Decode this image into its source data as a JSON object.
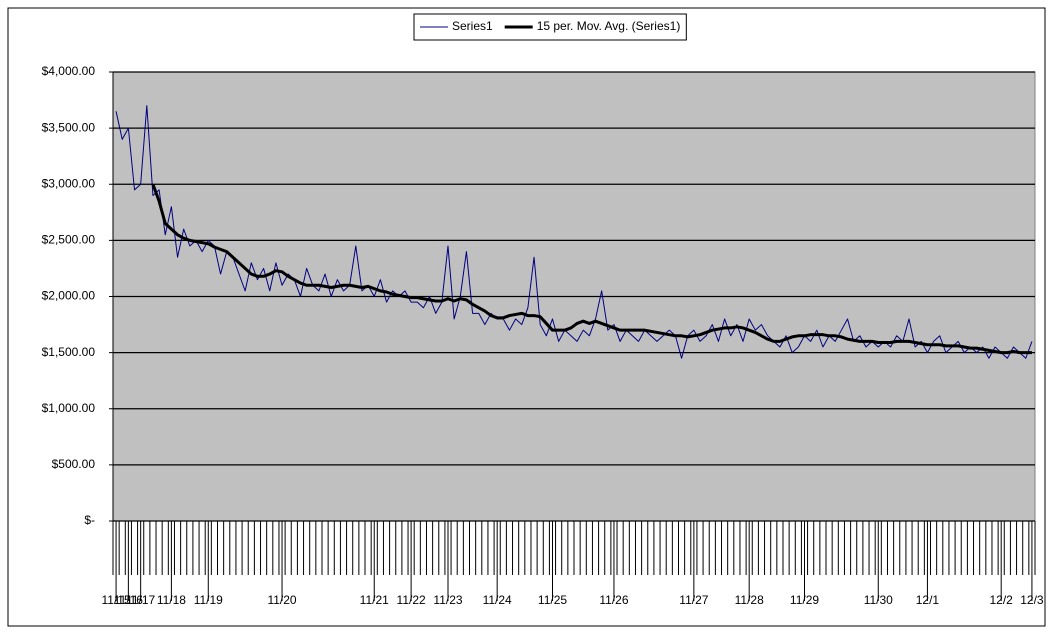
{
  "chart_data": {
    "type": "line",
    "categories": [
      "11/15",
      null,
      "11/16",
      null,
      "11/17",
      null,
      null,
      null,
      null,
      "11/18",
      null,
      null,
      null,
      null,
      null,
      "11/19",
      null,
      null,
      null,
      null,
      null,
      null,
      null,
      null,
      null,
      null,
      null,
      "11/20",
      null,
      null,
      null,
      null,
      null,
      null,
      null,
      null,
      null,
      null,
      null,
      null,
      null,
      null,
      "11/21",
      null,
      null,
      null,
      null,
      null,
      "11/22",
      null,
      null,
      null,
      null,
      null,
      "11/23",
      null,
      null,
      null,
      null,
      null,
      null,
      null,
      "11/24",
      null,
      null,
      null,
      null,
      null,
      null,
      null,
      null,
      "11/25",
      null,
      null,
      null,
      null,
      null,
      null,
      null,
      null,
      null,
      "11/26",
      null,
      null,
      null,
      null,
      null,
      null,
      null,
      null,
      null,
      null,
      null,
      null,
      "11/27",
      null,
      null,
      null,
      null,
      null,
      null,
      null,
      null,
      "11/28",
      null,
      null,
      null,
      null,
      null,
      null,
      null,
      null,
      "11/29",
      null,
      null,
      null,
      null,
      null,
      null,
      null,
      null,
      null,
      null,
      null,
      "11/30",
      null,
      null,
      null,
      null,
      null,
      null,
      null,
      "12/1",
      null,
      null,
      null,
      null,
      null,
      null,
      null,
      null,
      null,
      null,
      null,
      "12/2",
      null,
      null,
      null,
      null,
      "12/3"
    ],
    "series": [
      {
        "name": "Series1",
        "color": "#000080",
        "values": [
          3650,
          3400,
          3500,
          2950,
          3000,
          3700,
          2900,
          2950,
          2550,
          2800,
          2350,
          2600,
          2450,
          2500,
          2400,
          2500,
          2450,
          2200,
          2400,
          2350,
          2200,
          2050,
          2300,
          2150,
          2250,
          2050,
          2300,
          2100,
          2200,
          2150,
          2000,
          2250,
          2100,
          2050,
          2200,
          2000,
          2150,
          2050,
          2100,
          2450,
          2050,
          2100,
          2000,
          2150,
          1950,
          2050,
          2000,
          2050,
          1950,
          1950,
          1900,
          2000,
          1850,
          1950,
          2450,
          1800,
          2000,
          2400,
          1850,
          1850,
          1750,
          1850,
          1800,
          1800,
          1700,
          1800,
          1750,
          1900,
          2350,
          1750,
          1650,
          1800,
          1600,
          1700,
          1650,
          1600,
          1700,
          1650,
          1800,
          2050,
          1700,
          1750,
          1600,
          1700,
          1650,
          1600,
          1700,
          1650,
          1600,
          1650,
          1700,
          1650,
          1450,
          1650,
          1700,
          1600,
          1650,
          1750,
          1600,
          1800,
          1650,
          1750,
          1600,
          1800,
          1700,
          1750,
          1650,
          1600,
          1550,
          1650,
          1500,
          1550,
          1650,
          1600,
          1700,
          1550,
          1650,
          1600,
          1700,
          1800,
          1600,
          1650,
          1550,
          1600,
          1550,
          1600,
          1550,
          1650,
          1600,
          1800,
          1550,
          1600,
          1500,
          1600,
          1650,
          1500,
          1550,
          1600,
          1500,
          1550,
          1500,
          1550,
          1450,
          1550,
          1500,
          1450,
          1550,
          1500,
          1450,
          1600
        ]
      },
      {
        "name": "15 per. Mov. Avg. (Series1)",
        "color": "#000000",
        "values": [
          null,
          null,
          null,
          null,
          null,
          null,
          3000,
          2850,
          2650,
          2600,
          2550,
          2520,
          2500,
          2490,
          2480,
          2470,
          2440,
          2420,
          2400,
          2350,
          2300,
          2250,
          2200,
          2180,
          2180,
          2200,
          2230,
          2220,
          2180,
          2150,
          2120,
          2100,
          2100,
          2100,
          2090,
          2080,
          2090,
          2100,
          2100,
          2090,
          2080,
          2090,
          2070,
          2050,
          2040,
          2020,
          2010,
          2000,
          1990,
          1990,
          1980,
          1970,
          1960,
          1960,
          1980,
          1960,
          1980,
          1970,
          1930,
          1900,
          1870,
          1830,
          1810,
          1810,
          1830,
          1840,
          1850,
          1830,
          1830,
          1820,
          1760,
          1700,
          1700,
          1700,
          1720,
          1760,
          1780,
          1760,
          1780,
          1760,
          1740,
          1720,
          1700,
          1700,
          1700,
          1700,
          1700,
          1690,
          1680,
          1670,
          1660,
          1650,
          1650,
          1640,
          1650,
          1660,
          1680,
          1700,
          1710,
          1720,
          1720,
          1730,
          1720,
          1700,
          1680,
          1650,
          1620,
          1600,
          1600,
          1620,
          1640,
          1650,
          1650,
          1660,
          1660,
          1660,
          1650,
          1650,
          1640,
          1620,
          1610,
          1600,
          1600,
          1600,
          1590,
          1590,
          1590,
          1600,
          1600,
          1600,
          1590,
          1580,
          1570,
          1570,
          1570,
          1560,
          1560,
          1560,
          1550,
          1540,
          1540,
          1530,
          1520,
          1510,
          1500,
          1500,
          1510,
          1500,
          1500,
          1500
        ]
      }
    ],
    "ylim": [
      0,
      4000
    ],
    "yticks": [
      {
        "value": 0,
        "label": "$-"
      },
      {
        "value": 500,
        "label": "$500.00"
      },
      {
        "value": 1000,
        "label": "$1,000.00"
      },
      {
        "value": 1500,
        "label": "$1,500.00"
      },
      {
        "value": 2000,
        "label": "$2,000.00"
      },
      {
        "value": 2500,
        "label": "$2,500.00"
      },
      {
        "value": 3000,
        "label": "$3,000.00"
      },
      {
        "value": 3500,
        "label": "$3,500.00"
      },
      {
        "value": 4000,
        "label": "$4,000.00"
      }
    ],
    "grid": true,
    "legend": "top",
    "plot_background": "#c0c0c0"
  }
}
